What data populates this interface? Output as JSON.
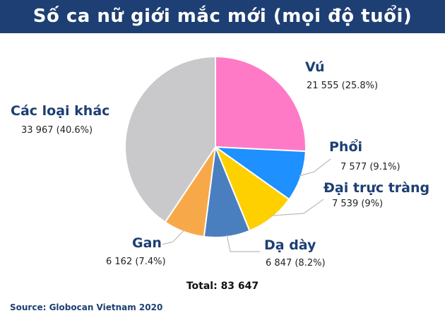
{
  "title": "Số ca nữ giới mắc mới (mọi độ tuổi)",
  "total_label": "Total: 83 647",
  "source_label": "Source: Globocan Vietnam 2020",
  "chart_data": {
    "type": "pie",
    "title": "Số ca nữ giới mắc mới (mọi độ tuổi)",
    "total": 83647,
    "slices": [
      {
        "name": "Vú",
        "value": 21555,
        "value_label": "21 555 (25.8%)",
        "percent": 25.8,
        "color": "#ff7ac6"
      },
      {
        "name": "Phổi",
        "value": 7577,
        "value_label": "7 577 (9.1%)",
        "percent": 9.1,
        "color": "#1e90ff"
      },
      {
        "name": "Đại trực tràng",
        "value": 7539,
        "value_label": "7 539 (9%)",
        "percent": 9.0,
        "color": "#ffd000"
      },
      {
        "name": "Dạ dày",
        "value": 6847,
        "value_label": "6 847 (8.2%)",
        "percent": 8.2,
        "color": "#4a7fbf"
      },
      {
        "name": "Gan",
        "value": 6162,
        "value_label": "6 162 (7.4%)",
        "percent": 7.4,
        "color": "#f7a94a"
      },
      {
        "name": "Các loại khác",
        "value": 33967,
        "value_label": "33 967 (40.6%)",
        "percent": 40.6,
        "color": "#c9c9cc"
      }
    ]
  }
}
